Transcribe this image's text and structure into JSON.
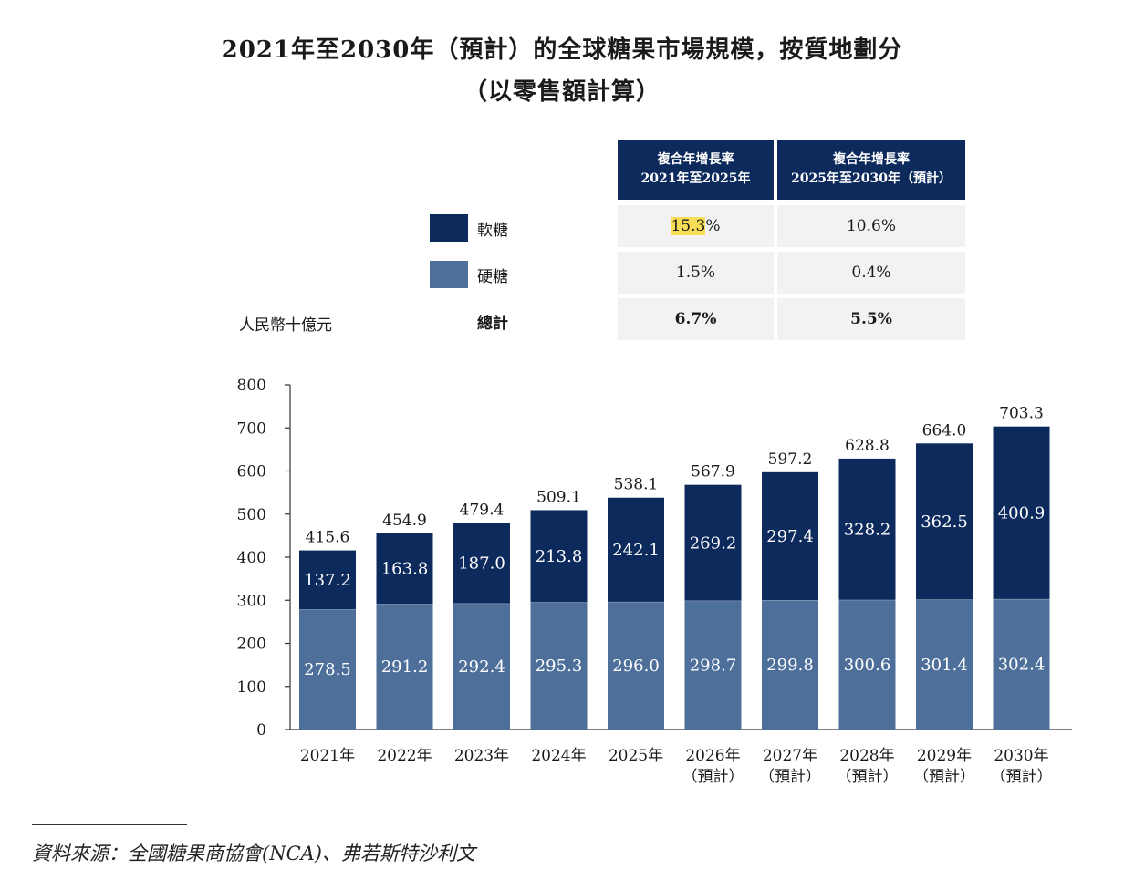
{
  "title_line1": "2021年至2030年（預計）的全球糖果市場規模，按質地劃分",
  "title_line2": "（以零售額計算）",
  "cagr_table": {
    "headers": [
      {
        "line1": "複合年增長率",
        "line2": "2021年至2025年"
      },
      {
        "line1": "複合年增長率",
        "line2": "2025年至2030年（預計）"
      }
    ],
    "rows": [
      {
        "label": "軟糖",
        "values": [
          "15.3%",
          "10.6%"
        ]
      },
      {
        "label": "硬糖",
        "values": [
          "1.5%",
          "0.4%"
        ]
      },
      {
        "label": "總計",
        "values": [
          "6.7%",
          "5.5%"
        ]
      }
    ],
    "highlight_part": "15.3",
    "highlight_rest": "%"
  },
  "unit_label": "人民幣十億元",
  "colors": {
    "soft": "#0d2a5c",
    "hard": "#4d6f9a",
    "header": "#0d2a5c"
  },
  "chart_data": {
    "type": "bar",
    "stacked": true,
    "categories": [
      "2021年",
      "2022年",
      "2023年",
      "2024年",
      "2025年",
      "2026年",
      "2027年",
      "2028年",
      "2029年",
      "2030年"
    ],
    "category_sublabels": [
      "",
      "",
      "",
      "",
      "",
      "（預計）",
      "（預計）",
      "（預計）",
      "（預計）",
      "（預計）"
    ],
    "series": [
      {
        "name": "硬糖",
        "values": [
          278.5,
          291.2,
          292.4,
          295.3,
          296.0,
          298.7,
          299.8,
          300.6,
          301.4,
          302.4
        ]
      },
      {
        "name": "軟糖",
        "values": [
          137.2,
          163.8,
          187.0,
          213.8,
          242.1,
          269.2,
          297.4,
          328.2,
          362.5,
          400.9
        ]
      }
    ],
    "totals": [
      "415.6",
      "454.9",
      "479.4",
      "509.1",
      "538.1",
      "567.9",
      "597.2",
      "628.8",
      "664.0",
      "703.3"
    ],
    "hard_labels": [
      "278.5",
      "291.2",
      "292.4",
      "295.3",
      "296.0",
      "298.7",
      "299.8",
      "300.6",
      "301.4",
      "302.4"
    ],
    "soft_labels": [
      "137.2",
      "163.8",
      "187.0",
      "213.8",
      "242.1",
      "269.2",
      "297.4",
      "328.2",
      "362.5",
      "400.9"
    ],
    "yticks": [
      "0",
      "100",
      "200",
      "300",
      "400",
      "500",
      "600",
      "700",
      "800"
    ],
    "ylim": [
      0,
      800
    ],
    "legend_position": "top"
  },
  "source": "資料來源：全國糖果商協會(NCA)、弗若斯特沙利文"
}
